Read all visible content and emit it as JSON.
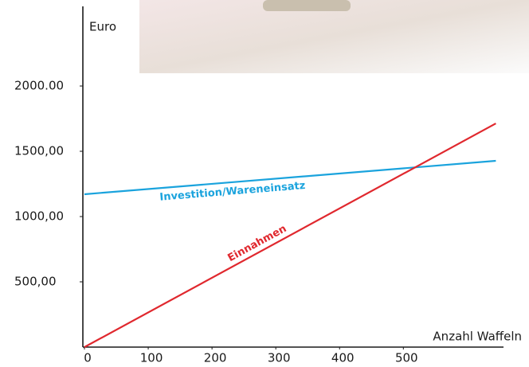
{
  "chart_data": {
    "type": "line",
    "y_label": "Euro",
    "x_label": "Anzahl Waffeln",
    "x": [
      0,
      645
    ],
    "series": [
      {
        "name": "Investition/Wareneinsatz",
        "color": "#1aa3dd",
        "values": [
          1171,
          1427
        ]
      },
      {
        "name": "Einnahmen",
        "color": "#e0282e",
        "values": [
          0,
          1713
        ]
      }
    ],
    "xlim": [
      0,
      657
    ],
    "ylim": [
      0,
      2610
    ],
    "xticks": [
      0,
      100,
      200,
      300,
      400,
      500
    ],
    "yticks": [
      {
        "value": 500,
        "label": "500,00"
      },
      {
        "value": 1000,
        "label": "1000,00"
      },
      {
        "value": 1500,
        "label": "1500,00"
      },
      {
        "value": 2000,
        "label": "2000.00"
      }
    ]
  }
}
